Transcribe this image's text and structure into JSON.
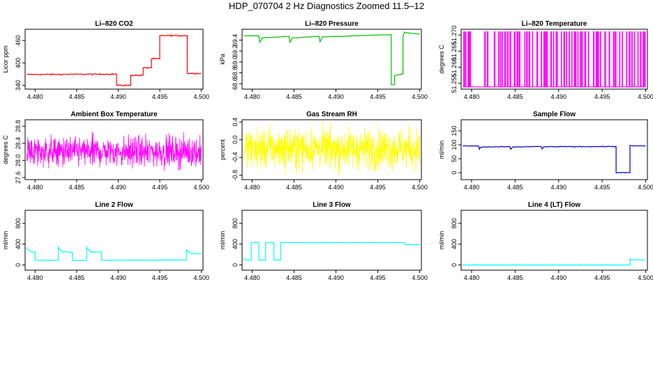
{
  "title": "HDP_070704  2 Hz Diagnostics Zoomed 11.5–12",
  "chart_data": [
    {
      "type": "line",
      "name": "li820-co2",
      "title": "Li–820 CO2",
      "ylabel": "Licor ppm",
      "color": "#ff0000",
      "xlim": [
        4.4788,
        4.5002
      ],
      "ylim": [
        330,
        490
      ],
      "xticks": [
        4.48,
        4.485,
        4.49,
        4.495,
        4.5
      ],
      "xticklabels": [
        "4.480",
        "4.485",
        "4.490",
        "4.495",
        "4.500"
      ],
      "yticks": [
        340,
        400,
        460
      ],
      "yticklabels": [
        "340",
        "400",
        "460"
      ],
      "noise": 1.5,
      "x": [
        4.479,
        4.4898,
        4.4898,
        4.4915,
        4.4915,
        4.493,
        4.493,
        4.494,
        4.494,
        4.495,
        4.495,
        4.4983,
        4.4983,
        4.5
      ],
      "y": [
        369,
        370,
        340,
        340,
        367,
        367,
        387,
        387,
        411,
        411,
        473,
        473,
        372,
        372
      ]
    },
    {
      "type": "line",
      "name": "li820-pressure",
      "title": "Li–820 Pressure",
      "ylabel": "kPa",
      "color": "#00c000",
      "xlim": [
        4.4788,
        4.5002
      ],
      "ylim": [
        68.5,
        69.6
      ],
      "xticks": [
        4.48,
        4.485,
        4.49,
        4.495,
        4.5
      ],
      "xticklabels": [
        "4.480",
        "4.485",
        "4.490",
        "4.495",
        "4.500"
      ],
      "yticks": [
        68.6,
        68.8,
        69.0,
        69.2,
        69.4
      ],
      "yticklabels": [
        "68.6",
        "68.8",
        "69.0",
        "69.2",
        "69.4"
      ],
      "noise": 0.005,
      "x": [
        4.479,
        4.4808,
        4.4809,
        4.4812,
        4.4844,
        4.4845,
        4.4848,
        4.488,
        4.4881,
        4.4884,
        4.4964,
        4.4966,
        4.4966,
        4.497,
        4.497,
        4.498,
        4.498,
        4.4982,
        4.4983,
        4.5
      ],
      "y": [
        69.48,
        69.48,
        69.36,
        69.44,
        69.47,
        69.36,
        69.44,
        69.47,
        69.37,
        69.46,
        69.5,
        69.5,
        68.58,
        68.58,
        68.75,
        68.78,
        69.46,
        69.55,
        69.54,
        69.51
      ]
    },
    {
      "type": "line",
      "name": "li820-temperature",
      "title": "Li–820 Temperature",
      "ylabel": "degrees C",
      "color": "#ff00ff",
      "xlim": [
        4.4788,
        4.5002
      ],
      "ylim": [
        51.2532,
        51.2718
      ],
      "xticks": [
        4.48,
        4.485,
        4.49,
        4.495,
        4.5
      ],
      "xticklabels": [
        "4.480",
        "4.485",
        "4.490",
        "4.495",
        "4.500"
      ],
      "yticks": [
        51.255,
        51.26,
        51.265,
        51.27
      ],
      "yticklabels": [
        "51.255",
        "51.260",
        "51.265",
        "51.270"
      ],
      "quantized": true,
      "low": 51.2539,
      "high": 51.271,
      "switches": [
        4.4791,
        4.4791,
        4.4793,
        4.4796,
        4.4797,
        4.4798,
        4.4815,
        4.4818,
        4.4826,
        4.4831,
        4.4833,
        4.4835,
        4.4838,
        4.4841,
        4.4844,
        4.4849,
        4.4852,
        4.4853,
        4.4855,
        4.4861,
        4.4863,
        4.4866,
        4.487,
        4.4875,
        4.488,
        4.4883,
        4.4884,
        4.4886,
        4.4891,
        4.4894,
        4.4897,
        4.4898,
        4.4903,
        4.4906,
        4.4909,
        4.4912,
        4.4915,
        4.4918,
        4.4919,
        4.4922,
        4.4925,
        4.4927,
        4.493,
        4.4934,
        4.494,
        4.4943,
        4.4945,
        4.4948,
        4.4953,
        4.4958,
        4.4963,
        4.4965,
        4.497,
        4.4973,
        4.4978,
        4.4981,
        4.4984,
        4.4987,
        4.4991,
        4.4994,
        4.4997,
        4.4999
      ]
    },
    {
      "type": "line",
      "name": "ambient-box-temperature",
      "title": "Ambient Box Temperature",
      "ylabel": "degrees C",
      "color": "#ff00ff",
      "xlim": [
        4.4788,
        4.5002
      ],
      "ylim": [
        27.55,
        28.95
      ],
      "xticks": [
        4.48,
        4.485,
        4.49,
        4.495,
        4.5
      ],
      "xticklabels": [
        "4.480",
        "4.485",
        "4.490",
        "4.495",
        "4.500"
      ],
      "yticks": [
        27.6,
        28.0,
        28.4,
        28.8
      ],
      "yticklabels": [
        "27.6",
        "28.0",
        "28.4",
        "28.8"
      ],
      "noisy": true,
      "mean": 28.2,
      "spread": 0.35,
      "n": 700,
      "x": [
        4.479,
        4.5
      ],
      "y": [
        28.2,
        28.2
      ]
    },
    {
      "type": "line",
      "name": "gas-stream-rh",
      "title": "Gas Stream RH",
      "ylabel": "percent",
      "color": "#ffff00",
      "xlim": [
        4.4788,
        4.5002
      ],
      "ylim": [
        -0.9,
        0.45
      ],
      "xticks": [
        4.48,
        4.485,
        4.49,
        4.495,
        4.5
      ],
      "xticklabels": [
        "4.480",
        "4.485",
        "4.490",
        "4.495",
        "4.500"
      ],
      "yticks": [
        -0.8,
        -0.4,
        0.0,
        0.4
      ],
      "yticklabels": [
        "-0.8",
        "-0.4",
        "0.0",
        "0.4"
      ],
      "noisy": true,
      "mean": -0.2,
      "spread": 0.45,
      "n": 700,
      "x": [
        4.479,
        4.5
      ],
      "y": [
        -0.2,
        -0.2
      ]
    },
    {
      "type": "line",
      "name": "sample-flow",
      "title": "Sample Flow",
      "ylabel": "ml/min",
      "color": "#0000c0",
      "xlim": [
        4.4788,
        4.5002
      ],
      "ylim": [
        -25,
        190
      ],
      "xticks": [
        4.48,
        4.485,
        4.49,
        4.495,
        4.5
      ],
      "xticklabels": [
        "4.480",
        "4.485",
        "4.490",
        "4.495",
        "4.500"
      ],
      "yticks": [
        0,
        50,
        100,
        150
      ],
      "yticklabels": [
        "0",
        "50",
        "100",
        "150"
      ],
      "noise": 1.2,
      "x": [
        4.479,
        4.4808,
        4.4809,
        4.4811,
        4.4844,
        4.4845,
        4.4847,
        4.488,
        4.4881,
        4.4883,
        4.4966,
        4.4966,
        4.4982,
        4.4982,
        4.4985,
        4.5
      ],
      "y": [
        96,
        96,
        84,
        92,
        93,
        84,
        92,
        94,
        85,
        93,
        94,
        0,
        0,
        98,
        96,
        96
      ]
    },
    {
      "type": "line",
      "name": "line-2-flow",
      "title": "Line 2 Flow",
      "ylabel": "ml/min",
      "color": "#00ffff",
      "xlim": [
        4.4788,
        4.5002
      ],
      "ylim": [
        -100,
        1050
      ],
      "xticks": [
        4.48,
        4.485,
        4.49,
        4.495,
        4.5
      ],
      "xticklabels": [
        "4.480",
        "4.485",
        "4.490",
        "4.495",
        "4.500"
      ],
      "yticks": [
        0,
        400,
        800
      ],
      "yticklabels": [
        "0",
        "400",
        "800"
      ],
      "noise": 4,
      "x": [
        4.479,
        4.4791,
        4.4795,
        4.48,
        4.48,
        4.4828,
        4.4828,
        4.4829,
        4.4833,
        4.4845,
        4.4845,
        4.4862,
        4.4862,
        4.4863,
        4.4867,
        4.488,
        4.488,
        4.4982,
        4.4982,
        4.4983,
        4.4988,
        4.5
      ],
      "y": [
        340,
        310,
        250,
        245,
        90,
        90,
        340,
        310,
        250,
        245,
        90,
        90,
        340,
        310,
        250,
        245,
        90,
        95,
        300,
        270,
        220,
        215
      ]
    },
    {
      "type": "line",
      "name": "line-3-flow",
      "title": "Line 3 Flow",
      "ylabel": "ml/min",
      "color": "#00ffff",
      "xlim": [
        4.4788,
        4.5002
      ],
      "ylim": [
        -100,
        1050
      ],
      "xticks": [
        4.48,
        4.485,
        4.49,
        4.495,
        4.5
      ],
      "xticklabels": [
        "4.480",
        "4.485",
        "4.490",
        "4.495",
        "4.500"
      ],
      "yticks": [
        0,
        400,
        800
      ],
      "yticklabels": [
        "0",
        "400",
        "800"
      ],
      "noise": 3,
      "x": [
        4.479,
        4.4792,
        4.4799,
        4.4799,
        4.4808,
        4.4808,
        4.4816,
        4.4816,
        4.4826,
        4.4826,
        4.4834,
        4.4834,
        4.4982,
        4.4983,
        4.5
      ],
      "y": [
        130,
        95,
        95,
        430,
        430,
        95,
        95,
        430,
        430,
        95,
        95,
        430,
        430,
        390,
        390
      ]
    },
    {
      "type": "line",
      "name": "line-4-lt-flow",
      "title": "Line 4 (LT) Flow",
      "ylabel": "ml/min",
      "color": "#00ffff",
      "xlim": [
        4.4788,
        4.5002
      ],
      "ylim": [
        -100,
        1050
      ],
      "xticks": [
        4.48,
        4.485,
        4.49,
        4.495,
        4.5
      ],
      "xticklabels": [
        "4.480",
        "4.485",
        "4.490",
        "4.495",
        "4.500"
      ],
      "yticks": [
        0,
        400,
        800
      ],
      "yticklabels": [
        "0",
        "400",
        "800"
      ],
      "noise": 2,
      "x": [
        4.479,
        4.4982,
        4.4982,
        4.4983,
        4.5
      ],
      "y": [
        0,
        0,
        120,
        100,
        95
      ]
    }
  ]
}
